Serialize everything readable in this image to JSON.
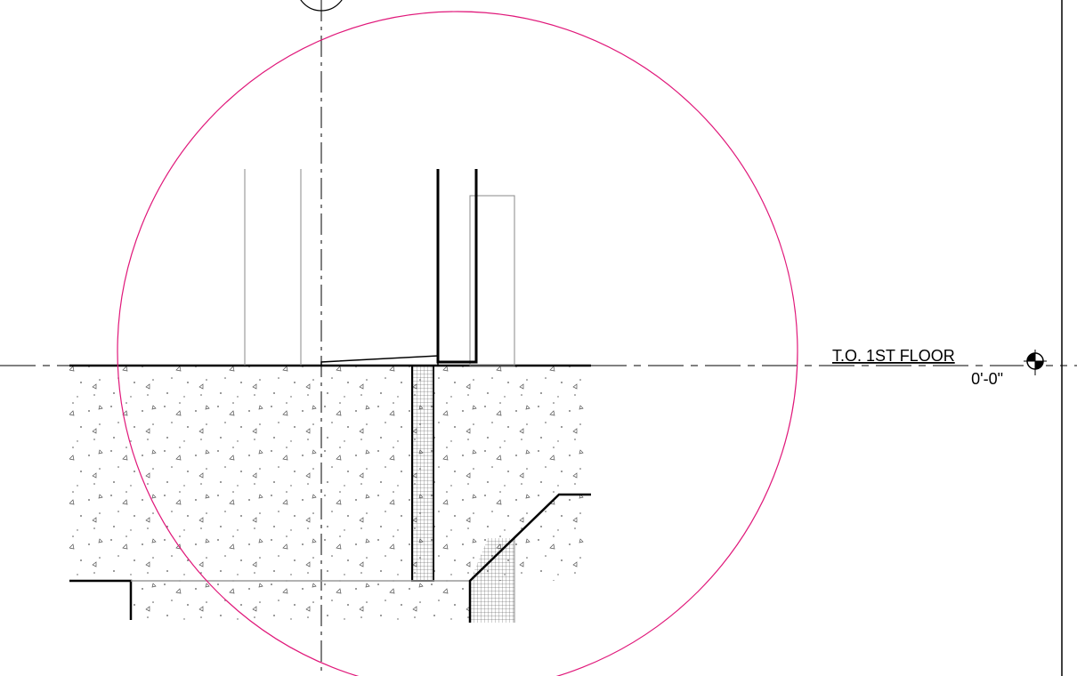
{
  "level": {
    "name": "T.O. 1ST FLOOR",
    "elevation": "0'-0\""
  }
}
